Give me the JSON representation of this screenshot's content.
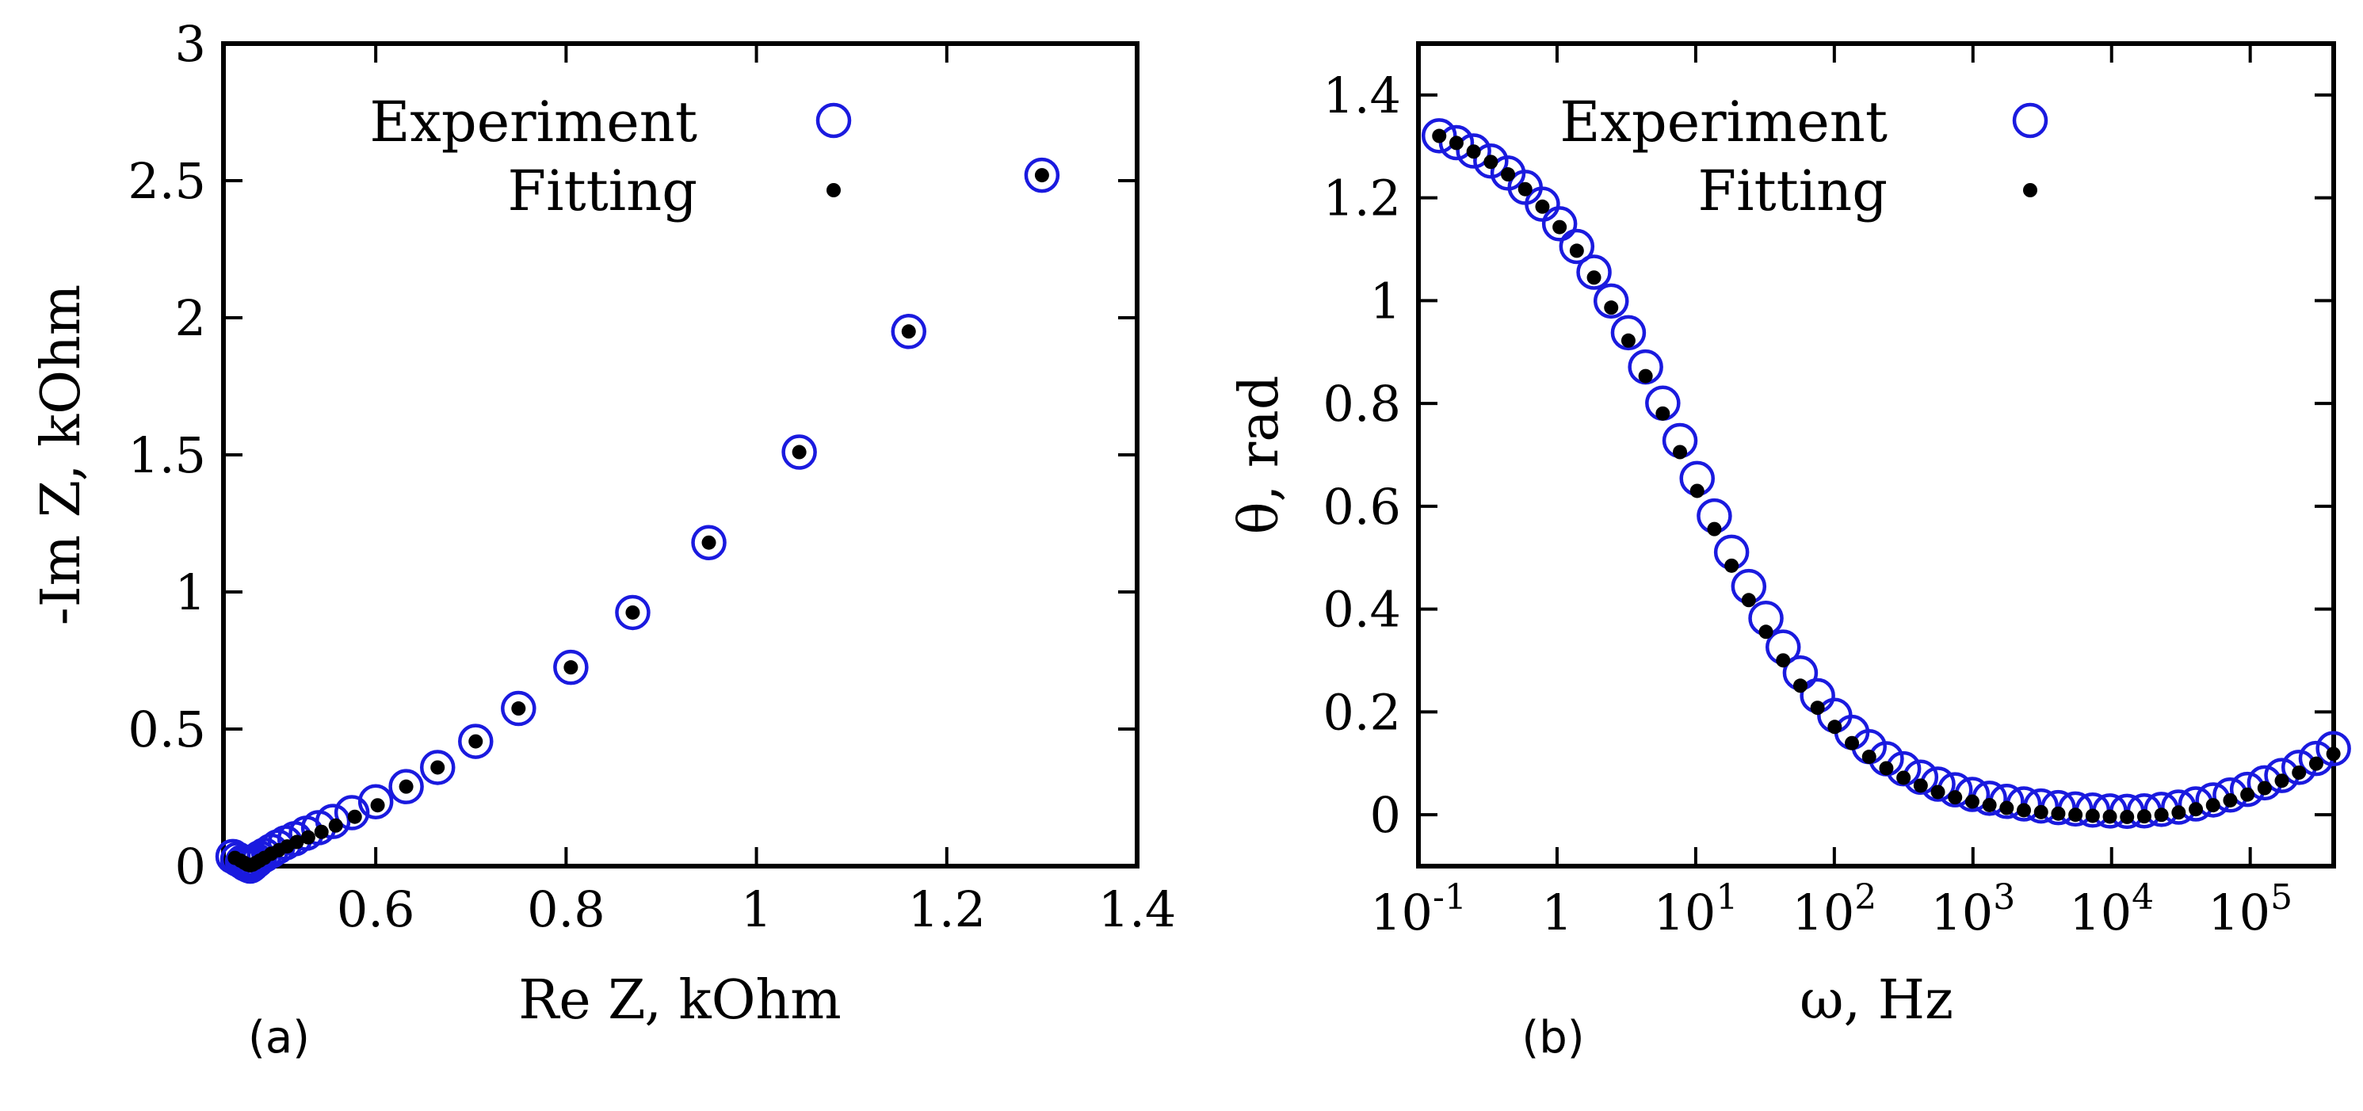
{
  "chart_data": [
    {
      "panel_label": "(a)",
      "type": "scatter",
      "xlabel": "Re Z, kOhm",
      "ylabel": "-Im Z, kOhm",
      "xlim": [
        0.44,
        1.4
      ],
      "ylim": [
        0,
        3
      ],
      "x_ticks": [
        0.6,
        0.8,
        1,
        1.2,
        1.4
      ],
      "x_tick_labels": [
        "0.6",
        "0.8",
        "1",
        "1.2",
        "1.4"
      ],
      "y_ticks": [
        0,
        0.5,
        1,
        1.5,
        2,
        2.5,
        3
      ],
      "y_tick_labels": [
        "0",
        "0.5",
        "1",
        "1.5",
        "2",
        "2.5",
        "3"
      ],
      "legend_position": "top-right",
      "series": [
        {
          "name": "Experiment",
          "marker": "open-circle",
          "color": "#1a1adf",
          "points": [
            [
              0.45,
              0.035
            ],
            [
              0.455,
              0.025
            ],
            [
              0.46,
              0.015
            ],
            [
              0.463,
              0.008
            ],
            [
              0.466,
              0.003
            ],
            [
              0.468,
              0.0
            ],
            [
              0.47,
              0.005
            ],
            [
              0.472,
              0.012
            ],
            [
              0.475,
              0.02
            ],
            [
              0.478,
              0.03
            ],
            [
              0.483,
              0.04
            ],
            [
              0.49,
              0.055
            ],
            [
              0.497,
              0.07
            ],
            [
              0.505,
              0.085
            ],
            [
              0.515,
              0.1
            ],
            [
              0.527,
              0.12
            ],
            [
              0.54,
              0.14
            ],
            [
              0.555,
              0.163
            ],
            [
              0.575,
              0.195
            ],
            [
              0.6,
              0.235
            ],
            [
              0.632,
              0.29
            ],
            [
              0.665,
              0.36
            ],
            [
              0.705,
              0.455
            ],
            [
              0.75,
              0.575
            ],
            [
              0.805,
              0.725
            ],
            [
              0.87,
              0.925
            ],
            [
              0.95,
              1.18
            ],
            [
              1.045,
              1.51
            ],
            [
              1.16,
              1.95
            ],
            [
              1.3,
              2.52
            ]
          ]
        },
        {
          "name": "Fitting",
          "marker": "filled-dot",
          "color": "#000000",
          "points": [
            [
              0.452,
              0.03
            ],
            [
              0.458,
              0.02
            ],
            [
              0.462,
              0.012
            ],
            [
              0.465,
              0.006
            ],
            [
              0.468,
              0.003
            ],
            [
              0.471,
              0.006
            ],
            [
              0.474,
              0.012
            ],
            [
              0.478,
              0.02
            ],
            [
              0.483,
              0.03
            ],
            [
              0.49,
              0.045
            ],
            [
              0.498,
              0.058
            ],
            [
              0.507,
              0.072
            ],
            [
              0.517,
              0.088
            ],
            [
              0.529,
              0.105
            ],
            [
              0.543,
              0.125
            ],
            [
              0.558,
              0.148
            ],
            [
              0.578,
              0.18
            ],
            [
              0.602,
              0.222
            ],
            [
              0.632,
              0.29
            ],
            [
              0.665,
              0.36
            ],
            [
              0.705,
              0.455
            ],
            [
              0.75,
              0.575
            ],
            [
              0.805,
              0.725
            ],
            [
              0.87,
              0.925
            ],
            [
              0.95,
              1.18
            ],
            [
              1.045,
              1.51
            ],
            [
              1.16,
              1.95
            ],
            [
              1.3,
              2.52
            ]
          ]
        }
      ]
    },
    {
      "panel_label": "(b)",
      "type": "scatter",
      "xlabel": "ω, Hz",
      "ylabel": "θ, rad",
      "xscale": "log",
      "xlim": [
        0.1,
        400000
      ],
      "ylim": [
        -0.1,
        1.5
      ],
      "x_ticks": [
        0.1,
        1,
        10,
        100,
        1000,
        10000,
        100000
      ],
      "x_tick_labels": [
        {
          "base": "10",
          "exp": "-1"
        },
        {
          "base": "1",
          "exp": ""
        },
        {
          "base": "10",
          "exp": "1"
        },
        {
          "base": "10",
          "exp": "2"
        },
        {
          "base": "10",
          "exp": "3"
        },
        {
          "base": "10",
          "exp": "4"
        },
        {
          "base": "10",
          "exp": "5"
        }
      ],
      "y_ticks": [
        0,
        0.2,
        0.4,
        0.6,
        0.8,
        1,
        1.2,
        1.4
      ],
      "y_tick_labels": [
        "0",
        "0.2",
        "0.4",
        "0.6",
        "0.8",
        "1",
        "1.2",
        "1.4"
      ],
      "legend_position": "top-right",
      "series": [
        {
          "name": "Experiment",
          "marker": "open-circle",
          "color": "#1a1adf",
          "model": {
            "theta_low": 1.38,
            "theta_high": 0.0,
            "center_log10": 0.95,
            "width": 0.58,
            "drift_log10": 4.0,
            "drift_slope": 0.05,
            "drift_power": 2,
            "log10_min": -0.85,
            "log10_max": 5.6,
            "n_points": 53
          }
        },
        {
          "name": "Fitting",
          "marker": "filled-dot",
          "color": "#000000",
          "model": {
            "theta_low": 1.38,
            "theta_high": -0.01,
            "center_log10": 0.92,
            "width": 0.57,
            "drift_log10": 4.0,
            "drift_slope": 0.05,
            "drift_power": 2,
            "log10_min": -0.85,
            "log10_max": 5.6,
            "n_points": 53
          }
        }
      ]
    }
  ]
}
